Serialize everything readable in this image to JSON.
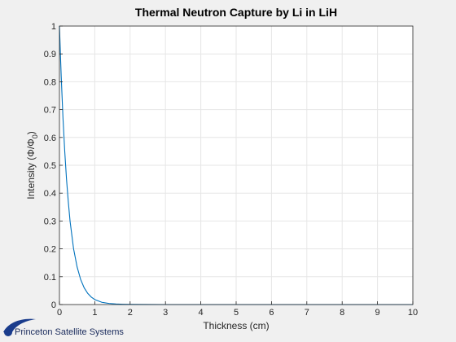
{
  "chart_data": {
    "type": "line",
    "title": "Thermal Neutron Capture by Li in LiH",
    "xlabel": "Thickness (cm)",
    "ylabel": "Intensity (Φ/Φ",
    "ylabel_sub": "0",
    "ylabel_close": ")",
    "xlim": [
      0,
      10
    ],
    "ylim": [
      0,
      1
    ],
    "xticks": [
      "0",
      "1",
      "2",
      "3",
      "4",
      "5",
      "6",
      "7",
      "8",
      "9",
      "10"
    ],
    "yticks": [
      "0",
      "0.1",
      "0.2",
      "0.3",
      "0.4",
      "0.5",
      "0.6",
      "0.7",
      "0.8",
      "0.9",
      "1"
    ],
    "grid": true,
    "series": [
      {
        "color": "#0072bd",
        "x": [
          0,
          0.05,
          0.1,
          0.15,
          0.2,
          0.25,
          0.3,
          0.35,
          0.4,
          0.5,
          0.6,
          0.7,
          0.8,
          0.9,
          1.0,
          1.2,
          1.4,
          1.6,
          1.8,
          2.0,
          2.5,
          3,
          4,
          5,
          6,
          7,
          8,
          9,
          10
        ],
        "y": [
          1.0,
          0.82,
          0.67,
          0.55,
          0.45,
          0.37,
          0.3,
          0.25,
          0.2,
          0.135,
          0.09,
          0.06,
          0.04,
          0.027,
          0.018,
          0.008,
          0.004,
          0.002,
          0.001,
          0.0005,
          0.0001,
          0,
          0,
          0,
          0,
          0,
          0,
          0,
          0
        ]
      }
    ]
  },
  "logo": {
    "text": "Princeton Satellite Systems",
    "color": "#1a3c8c"
  }
}
